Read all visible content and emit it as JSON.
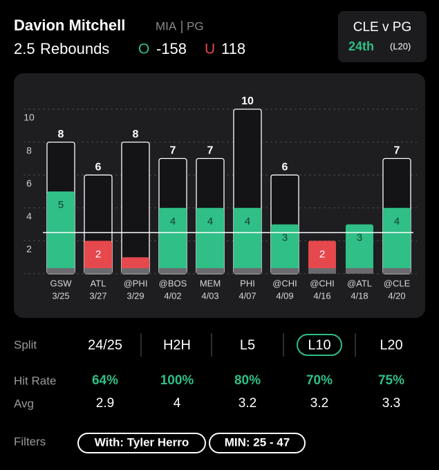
{
  "header": {
    "player": "Davion Mitchell",
    "team": "MIA",
    "position": "PG",
    "line": 2.5,
    "stat": "Rebounds",
    "over_label": "O",
    "over_odds": "-158",
    "under_label": "U",
    "under_odds": "118"
  },
  "matchup": {
    "title": "CLE v PG",
    "rank": "24th",
    "window": "(L20)"
  },
  "chart_data": {
    "type": "bar",
    "categories": [
      "GSW",
      "ATL",
      "@PHI",
      "@BOS",
      "MEM",
      "PHI",
      "@CHI",
      "@CHI",
      "@ATL",
      "@CLE"
    ],
    "dates": [
      "3/25",
      "3/27",
      "3/29",
      "4/02",
      "4/03",
      "4/07",
      "4/09",
      "4/16",
      "4/18",
      "4/20"
    ],
    "series": [
      {
        "values": [
          5,
          2,
          1,
          4,
          4,
          4,
          3,
          2,
          3,
          4
        ],
        "color": "#2fbf87",
        "under_color": "#e5484d"
      },
      {
        "values": [
          8,
          6,
          8,
          7,
          7,
          10,
          6,
          null,
          null,
          7
        ],
        "color": "#ffffff"
      }
    ],
    "threshold": 2.5,
    "ylim": [
      0,
      11
    ],
    "yticks": [
      2,
      4,
      6,
      8,
      10
    ],
    "grid": true
  },
  "splits": {
    "label": "Split",
    "columns": [
      "24/25",
      "H2H",
      "L5",
      "L10",
      "L20"
    ],
    "selected": "L10",
    "rows": [
      {
        "label": "Hit Rate",
        "values": [
          "64%",
          "100%",
          "80%",
          "70%",
          "75%"
        ]
      },
      {
        "label": "Avg",
        "values": [
          2.9,
          4,
          3.2,
          3.2,
          3.3
        ]
      }
    ]
  },
  "filters": {
    "label": "Filters",
    "chips": [
      "With: Tyler Herro",
      "MIN: 25 - 47"
    ]
  }
}
